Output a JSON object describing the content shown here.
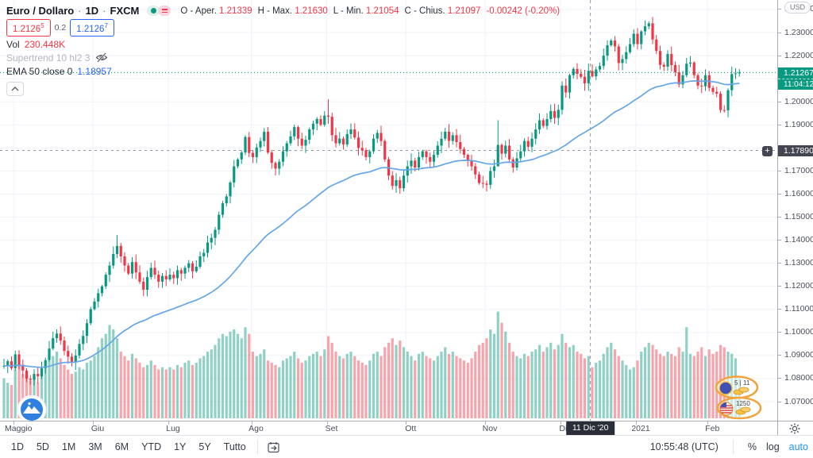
{
  "header": {
    "symbol": "Euro / Dollaro",
    "interval": "1D",
    "exchange": "FXCM",
    "sep": "·",
    "ohlc": [
      {
        "label": "O - Aper.",
        "value": "1.21339"
      },
      {
        "label": "H - Max.",
        "value": "1.21630"
      },
      {
        "label": "L - Min.",
        "value": "1.21054"
      },
      {
        "label": "C - Chius.",
        "value": "1.21097"
      }
    ],
    "change": "-0.00242 (-0.20%)",
    "bid": {
      "main": "1.2126",
      "sup": "5"
    },
    "spread": "0.2",
    "ask": {
      "main": "1.2126",
      "sup": "7"
    },
    "vol_label": "Vol",
    "vol_value": "230.448K",
    "supertrend_label": "Supertrend 10 hl2 3",
    "ema_label": "EMA 50 close 0",
    "ema_value": "1.18957"
  },
  "axis": {
    "currency": "USD",
    "current_price": "1.21267",
    "countdown": "11:04:12",
    "level_price": "1.17890",
    "plus": "+",
    "crosshair_label": "11 Dic '20",
    "price_ticks": [
      "1.24000",
      "1.23000",
      "1.22000",
      "1.21000",
      "1.20000",
      "1.19000",
      "1.18000",
      "1.17000",
      "1.16000",
      "1.15000",
      "1.14000",
      "1.13000",
      "1.12000",
      "1.11000",
      "1.10000",
      "1.09000",
      "1.08000",
      "1.07000"
    ],
    "hidden_ticks": [
      "1.21000",
      "1.18000"
    ]
  },
  "toolbar": {
    "ranges": [
      "1D",
      "5D",
      "1M",
      "3M",
      "6M",
      "YTD",
      "1Y",
      "5Y",
      "Tutto"
    ],
    "clock": "10:55:48 (UTC)",
    "percent_label": "%",
    "log_label": "log",
    "auto_label": "auto"
  },
  "stickers": {
    "top": "5 | 11",
    "bottom": "1250"
  },
  "chart_data": {
    "type": "candlestick+volume",
    "title": "Euro / Dollaro 1D FXCM",
    "x_range": "late Apr 2020 - mid Feb 2021, daily candles",
    "y_axis_visible_range": [
      1.062,
      1.244
    ],
    "legend_position": "top-left overlay",
    "grid": true,
    "months": [
      {
        "label": "Maggio",
        "i": 3
      },
      {
        "label": "Giu",
        "i": 24
      },
      {
        "label": "Lug",
        "i": 44
      },
      {
        "label": "Ago",
        "i": 66
      },
      {
        "label": "Set",
        "i": 86
      },
      {
        "label": "Ott",
        "i": 107
      },
      {
        "label": "Nov",
        "i": 128
      },
      {
        "label": "Dic",
        "i": 148
      },
      {
        "label": "2021",
        "i": 168
      },
      {
        "label": "Feb",
        "i": 187
      }
    ],
    "crosshair_i": 155.5,
    "closes": [
      1.0855,
      1.0875,
      1.0845,
      1.0905,
      1.086,
      1.0835,
      1.08,
      1.0795,
      1.082,
      1.081,
      1.0845,
      1.088,
      1.093,
      1.0975,
      1.0995,
      1.0965,
      1.092,
      1.0895,
      1.087,
      1.09,
      1.095,
      1.0985,
      1.104,
      1.1101,
      1.1134,
      1.117,
      1.12,
      1.125,
      1.129,
      1.134,
      1.1375,
      1.133,
      1.129,
      1.1255,
      1.1305,
      1.126,
      1.122,
      1.1185,
      1.124,
      1.128,
      1.125,
      1.122,
      1.1245,
      1.123,
      1.125,
      1.1235,
      1.127,
      1.1255,
      1.128,
      1.13,
      1.1265,
      1.1285,
      1.133,
      1.1345,
      1.139,
      1.141,
      1.1445,
      1.151,
      1.156,
      1.159,
      1.165,
      1.172,
      1.175,
      1.178,
      1.1847,
      1.1778,
      1.176,
      1.1802,
      1.183,
      1.187,
      1.178,
      1.1735,
      1.171,
      1.174,
      1.1785,
      1.182,
      1.185,
      1.189,
      1.184,
      1.181,
      1.1835,
      1.188,
      1.1905,
      1.1925,
      1.19,
      1.194,
      1.1935,
      1.1855,
      1.182,
      1.184,
      1.1815,
      1.186,
      1.188,
      1.1845,
      1.18,
      1.179,
      1.176,
      1.1785,
      1.184,
      1.1865,
      1.183,
      1.175,
      1.168,
      1.1635,
      1.166,
      1.1625,
      1.168,
      1.172,
      1.1745,
      1.1715,
      1.176,
      1.1785,
      1.176,
      1.174,
      1.177,
      1.181,
      1.184,
      1.187,
      1.183,
      1.1855,
      1.1825,
      1.1795,
      1.177,
      1.1745,
      1.172,
      1.1685,
      1.1648,
      1.1645,
      1.164,
      1.17,
      1.172,
      1.1813,
      1.1775,
      1.181,
      1.175,
      1.1715,
      1.1755,
      1.1785,
      1.183,
      1.1805,
      1.184,
      1.188,
      1.192,
      1.1895,
      1.1925,
      1.196,
      1.193,
      1.1965,
      1.207,
      1.204,
      1.2115,
      1.2142,
      1.2121,
      1.2108,
      1.208,
      1.2134,
      1.211,
      1.214,
      1.2155,
      1.22,
      1.2245,
      1.2265,
      1.224,
      1.2168,
      1.2185,
      1.2215,
      1.225,
      1.2295,
      1.225,
      1.2305,
      1.2327,
      1.234,
      1.227,
      1.222,
      1.216,
      1.2152,
      1.2207,
      1.2159,
      1.2128,
      1.2075,
      1.2115,
      1.2165,
      1.217,
      1.2115,
      1.207,
      1.2067,
      1.2115,
      1.206,
      1.2043,
      1.2035,
      1.1964,
      1.1963,
      1.205,
      1.212,
      1.2123,
      1.2127
    ],
    "volumes_k": [
      180,
      160,
      150,
      220,
      240,
      200,
      190,
      170,
      180,
      160,
      200,
      230,
      260,
      280,
      300,
      270,
      240,
      220,
      200,
      210,
      230,
      220,
      250,
      260,
      280,
      320,
      360,
      380,
      420,
      400,
      360,
      300,
      280,
      260,
      290,
      270,
      250,
      230,
      240,
      260,
      240,
      220,
      230,
      220,
      230,
      220,
      240,
      230,
      250,
      260,
      240,
      250,
      270,
      280,
      300,
      310,
      330,
      360,
      380,
      370,
      390,
      400,
      380,
      360,
      410,
      380,
      300,
      280,
      290,
      310,
      260,
      250,
      240,
      230,
      260,
      270,
      280,
      300,
      270,
      250,
      260,
      280,
      290,
      300,
      280,
      310,
      370,
      340,
      300,
      280,
      270,
      290,
      300,
      280,
      260,
      250,
      240,
      260,
      290,
      300,
      280,
      320,
      340,
      360,
      330,
      350,
      320,
      300,
      280,
      260,
      290,
      300,
      280,
      270,
      260,
      280,
      300,
      320,
      290,
      300,
      280,
      270,
      260,
      250,
      270,
      300,
      330,
      340,
      360,
      400,
      380,
      480,
      430,
      390,
      340,
      300,
      280,
      270,
      290,
      280,
      300,
      310,
      330,
      300,
      320,
      340,
      310,
      330,
      380,
      340,
      320,
      330,
      300,
      290,
      270,
      280,
      230,
      250,
      260,
      290,
      320,
      340,
      310,
      280,
      260,
      240,
      220,
      230,
      260,
      300,
      320,
      340,
      330,
      310,
      290,
      280,
      300,
      290,
      280,
      320,
      300,
      410,
      290,
      280,
      300,
      320,
      280,
      310,
      290,
      300,
      330,
      320,
      300,
      290,
      270,
      180
    ],
    "overrides": {
      "30": {
        "h": 1.1422
      },
      "86": {
        "h": 1.2011
      },
      "131": {
        "h": 1.192,
        "l": 1.179
      },
      "156": {
        "o": 1.21339,
        "h": 1.2163,
        "l": 1.21054,
        "c": 1.21097
      },
      "171": {
        "h": 1.2349
      },
      "190": {
        "l": 1.1952
      },
      "191": {
        "l": 1.1953
      },
      "195": {
        "c": 1.21267
      }
    },
    "ema_period": 50,
    "levels": {
      "current_price": 1.21267,
      "dashed_level": 1.1789
    },
    "colors": {
      "up": "#089981",
      "down": "#f23645",
      "vol_up": "rgba(8,153,129,0.45)",
      "vol_down": "rgba(242,54,69,0.45)",
      "ema": "#64a6e8",
      "grid": "#f0f3fa",
      "crosshair": "#9598a1",
      "level_line": "#9598a1",
      "current_line": "#089981",
      "accent_blue": "#2962ff",
      "auto_blue": "#2196f3"
    }
  }
}
